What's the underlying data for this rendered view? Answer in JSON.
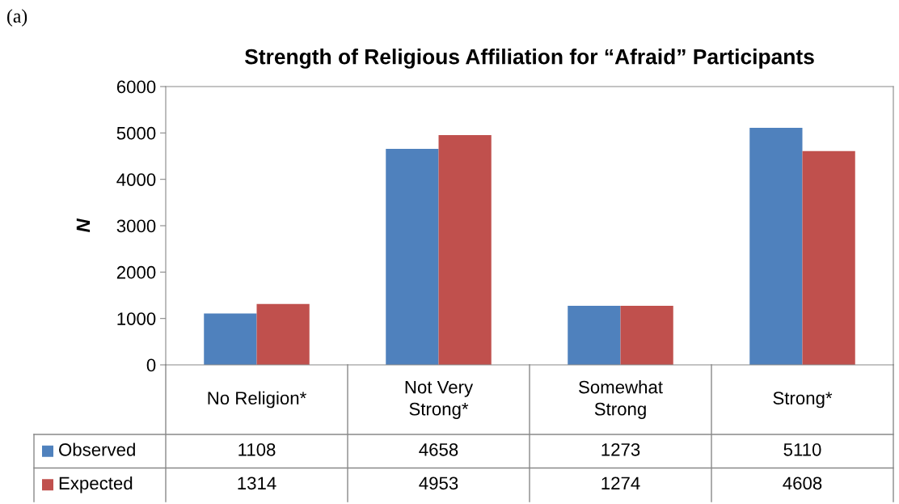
{
  "chart_data": {
    "type": "bar",
    "title": "Strength of Religious Affiliation for “Afraid” Participants",
    "ylabel": "N",
    "annotations": [
      "(a)"
    ],
    "categories": [
      "No Religion*",
      "Not Very\nStrong*",
      "Somewhat\nStrong",
      "Strong*"
    ],
    "series": [
      {
        "name": "Observed",
        "color": "#4f81bd",
        "values": [
          1108,
          4658,
          1273,
          5110
        ]
      },
      {
        "name": "Expected",
        "color": "#c0504d",
        "values": [
          1314,
          4953,
          1274,
          4608
        ]
      }
    ],
    "ylim": [
      0,
      6000
    ],
    "yticks": [
      0,
      1000,
      2000,
      3000,
      4000,
      5000,
      6000
    ],
    "data_labels": true,
    "legend": "bottom left",
    "grid": false
  }
}
